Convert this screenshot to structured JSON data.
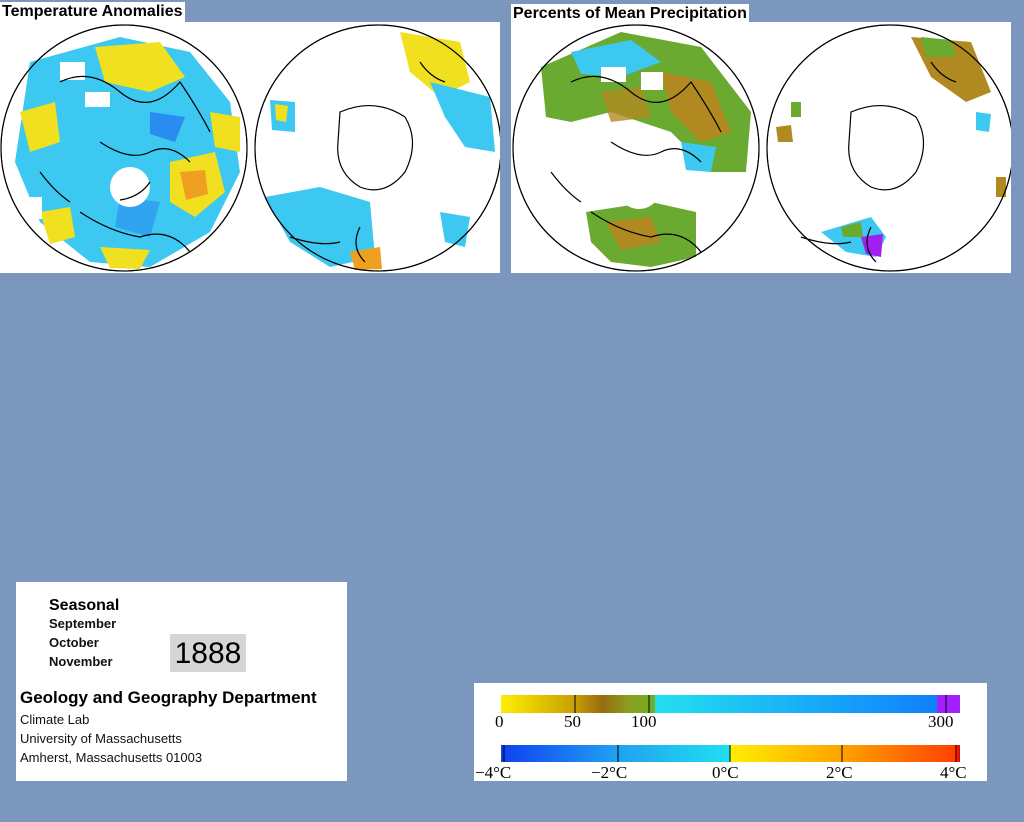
{
  "panels": {
    "temperature": {
      "title": "Temperature Anomalies"
    },
    "precipitation": {
      "title": "Percents of Mean Precipitation"
    }
  },
  "info": {
    "season_title": "Seasonal",
    "months": [
      "September",
      "October",
      "November"
    ],
    "year": "1888",
    "department": "Geology and Geography Department",
    "lines": [
      "Climate Lab",
      "University of Massachusetts",
      "Amherst, Massachusetts 01003"
    ]
  },
  "legend": {
    "precipitation": {
      "labels": [
        "0",
        "50",
        "100",
        "300"
      ],
      "colors": [
        "#ffee00",
        "#c8a000",
        "#9a6a10",
        "#70b020",
        "#22e0f0",
        "#1080ff",
        "#a020ff"
      ]
    },
    "temperature": {
      "labels": [
        "−4°C",
        "−2°C",
        "0°C",
        "2°C",
        "4°C"
      ],
      "colors": [
        "#1040f0",
        "#20a0f0",
        "#20e0f0",
        "#ffee00",
        "#ffb000",
        "#ff6000",
        "#e00000"
      ]
    }
  },
  "map_colors": {
    "ocean": "#ffffff",
    "coast": "#000000",
    "cool": "#3cc8f0",
    "cold": "#2a8cf0",
    "warm": "#f0e020",
    "hot": "#f0a020",
    "dry": "#b08a20",
    "wet_green": "#6aaa30",
    "very_wet": "#a020f0"
  }
}
